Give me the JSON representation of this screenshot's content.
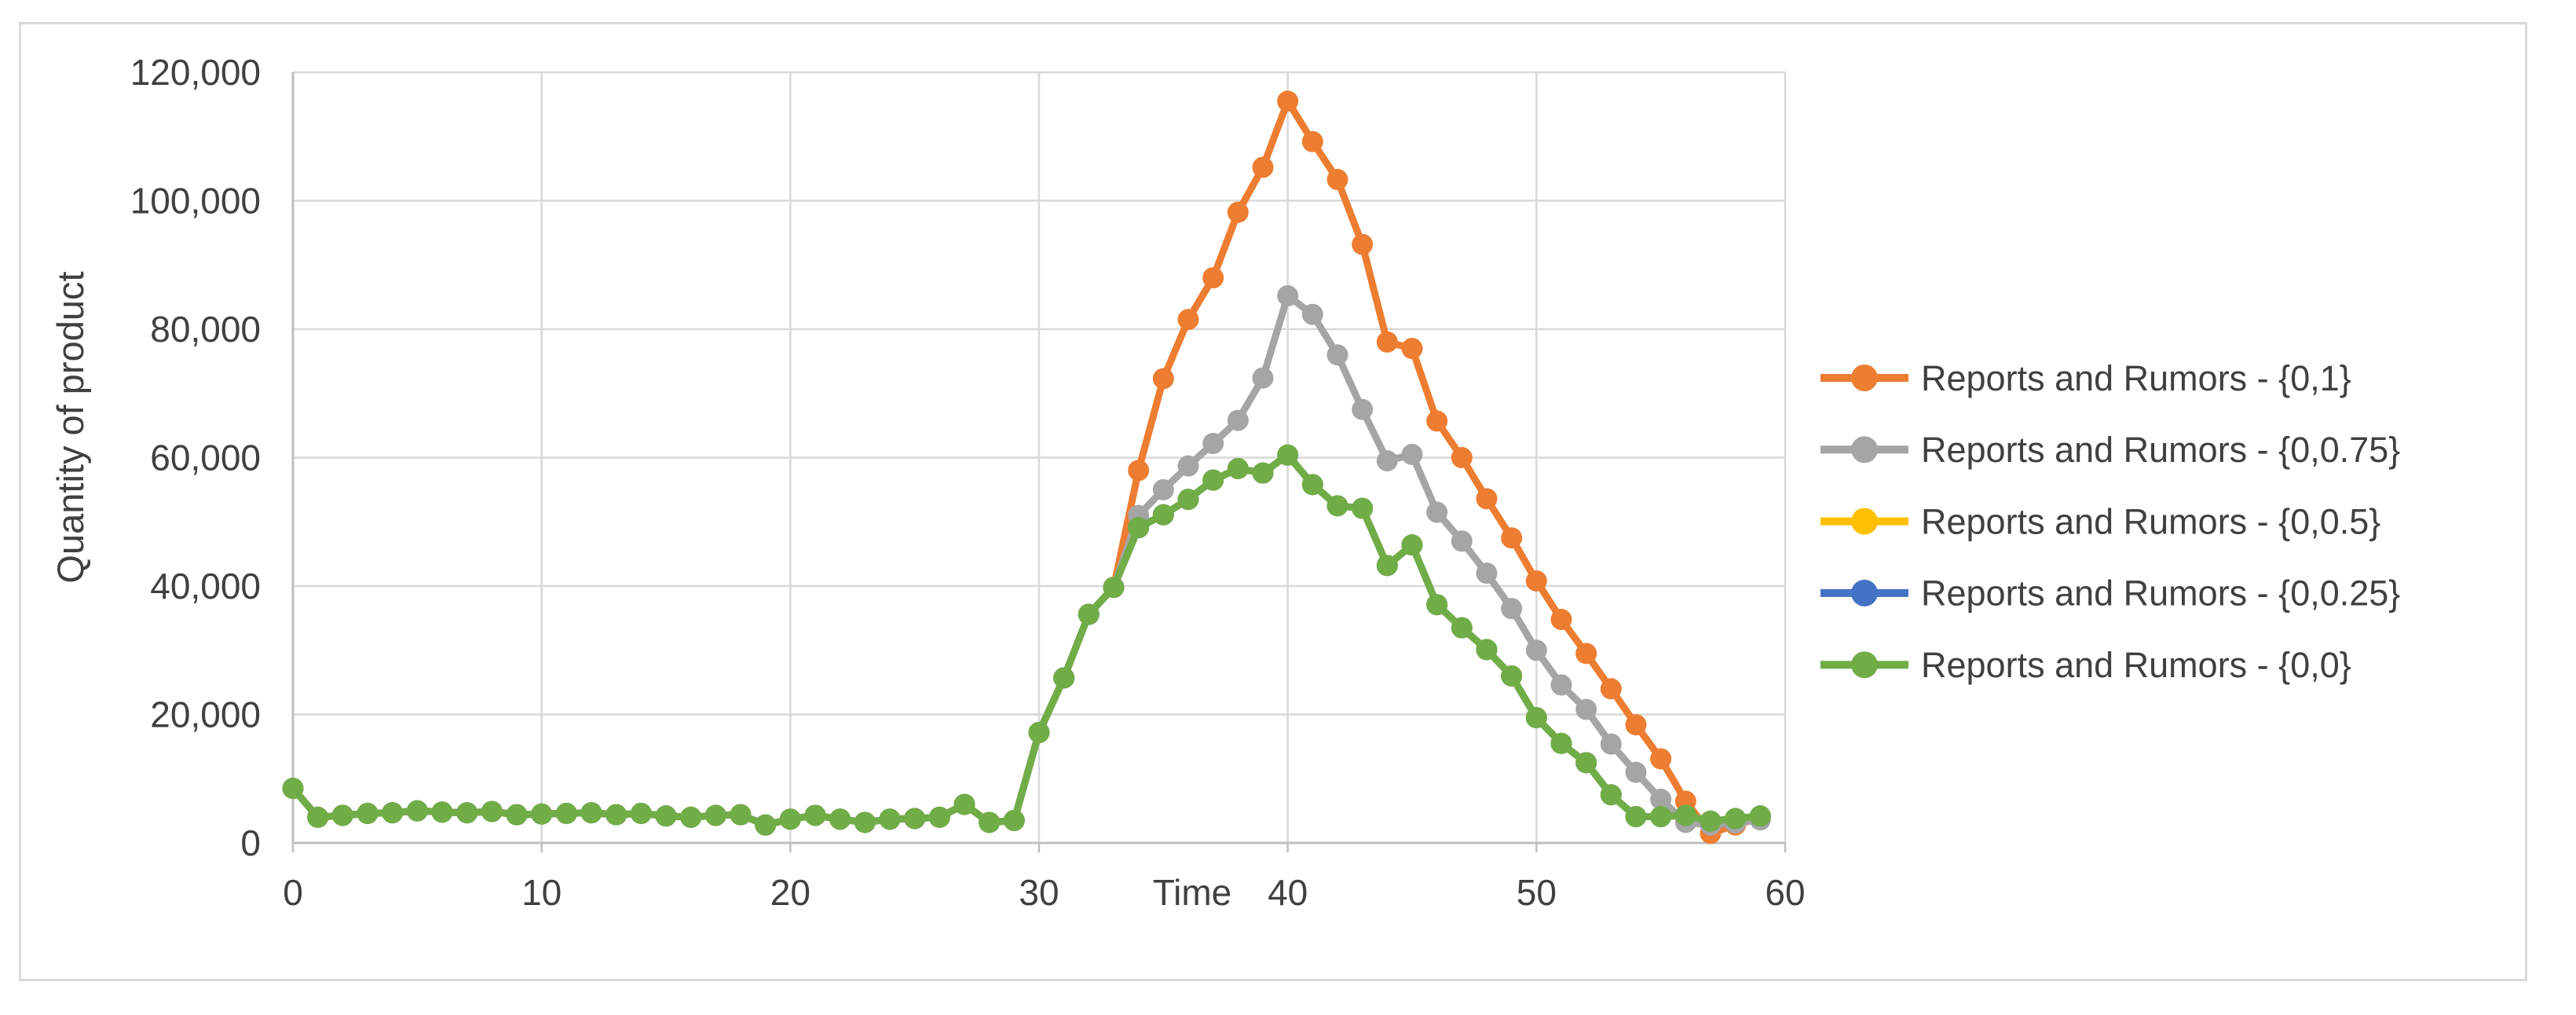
{
  "chart_data": {
    "type": "line",
    "title": "",
    "xlabel": "Time",
    "ylabel": "Quantity of product",
    "xlim": [
      0,
      60
    ],
    "ylim": [
      0,
      120000
    ],
    "grid": "on",
    "legend_position": "right",
    "x_ticks": [
      "0",
      "10",
      "20",
      "30",
      "40",
      "50",
      "60"
    ],
    "y_ticks": [
      "0",
      "20,000",
      "40,000",
      "60,000",
      "80,000",
      "100,000",
      "120,000"
    ],
    "x": [
      0,
      1,
      2,
      3,
      4,
      5,
      6,
      7,
      8,
      9,
      10,
      11,
      12,
      13,
      14,
      15,
      16,
      17,
      18,
      19,
      20,
      21,
      22,
      23,
      24,
      25,
      26,
      27,
      28,
      29,
      30,
      31,
      32,
      33,
      34,
      35,
      36,
      37,
      38,
      39,
      40,
      41,
      42,
      43,
      44,
      45,
      46,
      47,
      48,
      49,
      50,
      51,
      52,
      53,
      54,
      55,
      56,
      57,
      58,
      59
    ],
    "series": [
      {
        "name": "Reports and Rumors - {0,1}",
        "color": "#ED7D31",
        "marker": "circle",
        "values": [
          8500,
          4000,
          4300,
          4600,
          4700,
          5000,
          4800,
          4700,
          4900,
          4400,
          4500,
          4600,
          4700,
          4400,
          4600,
          4200,
          4000,
          4300,
          4400,
          2800,
          3700,
          4300,
          3700,
          3200,
          3700,
          3800,
          4000,
          6000,
          3200,
          3500,
          17200,
          25700,
          35600,
          39800,
          58000,
          72300,
          81500,
          88000,
          98200,
          105200,
          115500,
          109200,
          103300,
          93200,
          78000,
          77000,
          65700,
          60000,
          53600,
          47500,
          40800,
          34800,
          29500,
          24000,
          18400,
          13100,
          6500,
          1500,
          2800,
          3900
        ]
      },
      {
        "name": "Reports and Rumors - {0,0.75}",
        "color": "#A5A5A5",
        "marker": "circle",
        "values": [
          8500,
          4000,
          4300,
          4600,
          4700,
          5000,
          4800,
          4700,
          4900,
          4400,
          4500,
          4600,
          4700,
          4400,
          4600,
          4200,
          4000,
          4300,
          4400,
          2800,
          3700,
          4300,
          3700,
          3200,
          3700,
          3800,
          4000,
          6000,
          3200,
          3500,
          17200,
          25700,
          35600,
          39800,
          51000,
          55000,
          58700,
          62200,
          65800,
          72400,
          85200,
          82300,
          76000,
          67500,
          59500,
          60500,
          51500,
          47000,
          42000,
          36500,
          30000,
          24600,
          20800,
          15400,
          11000,
          6800,
          3200,
          2800,
          3100,
          3600
        ]
      },
      {
        "name": "Reports and Rumors - {0,0.5}",
        "color": "#FFC000",
        "marker": "circle",
        "values": [
          8500,
          4000,
          4300,
          4600,
          4700,
          5000,
          4800,
          4700,
          4900,
          4400,
          4500,
          4600,
          4700,
          4400,
          4600,
          4200,
          4000,
          4300,
          4400,
          2800,
          3700,
          4300,
          3700,
          3200,
          3700,
          3800,
          4000,
          6000,
          3200,
          3500,
          17200,
          25700,
          35600,
          39800,
          49100,
          51100,
          53500,
          56500,
          58300,
          57600,
          60400,
          55800,
          52500,
          52100,
          43200,
          46400,
          37100,
          33500,
          30100,
          26000,
          19500,
          15500,
          12500,
          7500,
          4100,
          4100,
          4300,
          3400,
          3800,
          4200
        ]
      },
      {
        "name": "Reports and Rumors - {0,0.25}",
        "color": "#4472C4",
        "marker": "circle",
        "values": [
          8500,
          4000,
          4300,
          4600,
          4700,
          5000,
          4800,
          4700,
          4900,
          4400,
          4500,
          4600,
          4700,
          4400,
          4600,
          4200,
          4000,
          4300,
          4400,
          2800,
          3700,
          4300,
          3700,
          3200,
          3700,
          3800,
          4000,
          6000,
          3200,
          3500,
          17200,
          25700,
          35600,
          39800,
          49100,
          51100,
          53500,
          56500,
          58300,
          57600,
          60400,
          55800,
          52500,
          52100,
          43200,
          46400,
          37100,
          33500,
          30100,
          26000,
          19500,
          15500,
          12500,
          7500,
          4100,
          4100,
          4300,
          3400,
          3800,
          4200
        ]
      },
      {
        "name": "Reports and Rumors - {0,0}",
        "color": "#70AD47",
        "marker": "circle",
        "values": [
          8500,
          4000,
          4300,
          4600,
          4700,
          5000,
          4800,
          4700,
          4900,
          4400,
          4500,
          4600,
          4700,
          4400,
          4600,
          4200,
          4000,
          4300,
          4400,
          2800,
          3700,
          4300,
          3700,
          3200,
          3700,
          3800,
          4000,
          6000,
          3200,
          3500,
          17200,
          25700,
          35600,
          39800,
          49100,
          51100,
          53500,
          56500,
          58300,
          57600,
          60400,
          55800,
          52500,
          52100,
          43200,
          46400,
          37100,
          33500,
          30100,
          26000,
          19500,
          15500,
          12500,
          7500,
          4100,
          4100,
          4300,
          3400,
          3800,
          4200
        ]
      }
    ],
    "styles": {
      "grid_color": "#D9D9D9",
      "axis_color": "#BFBFBF",
      "text_color": "#404040",
      "frame_color": "#D9D9D9",
      "background": "#FFFFFF"
    }
  }
}
